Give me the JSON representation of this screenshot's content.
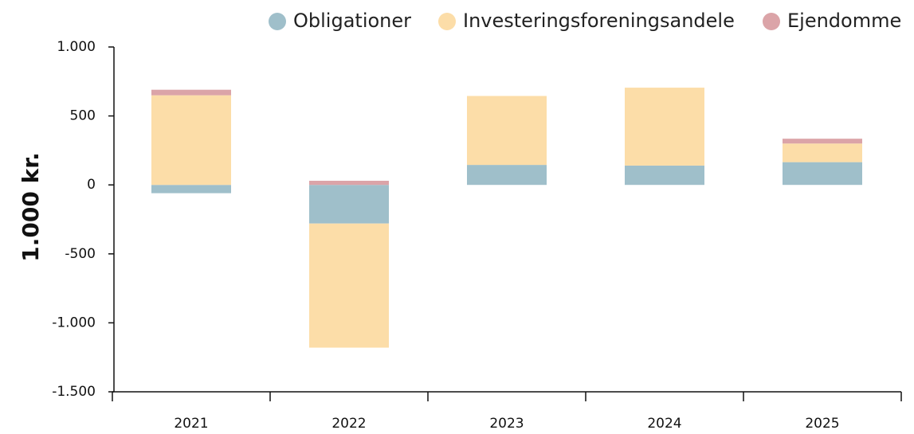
{
  "chart_data": {
    "type": "bar",
    "stacked": true,
    "y_label": "1.000 kr.",
    "categories": [
      "2021",
      "2022",
      "2023",
      "2024",
      "2025"
    ],
    "series": [
      {
        "name": "Obligationer",
        "color": "#9fbfca",
        "values": [
          -60,
          -280,
          145,
          140,
          165
        ]
      },
      {
        "name": "Investeringsforeningsandele",
        "color": "#fcdda8",
        "values": [
          650,
          -900,
          500,
          565,
          135
        ]
      },
      {
        "name": "Ejendomme",
        "color": "#dba4a8",
        "values": [
          40,
          30,
          0,
          0,
          35
        ]
      }
    ],
    "ylim": [
      -1500,
      1000
    ],
    "yticks": [
      {
        "value": -1500,
        "label": "-1.500"
      },
      {
        "value": -1000,
        "label": "-1.000"
      },
      -500,
      0,
      500,
      {
        "value": 1000,
        "label": "1.000"
      }
    ],
    "legend": "top-right"
  }
}
